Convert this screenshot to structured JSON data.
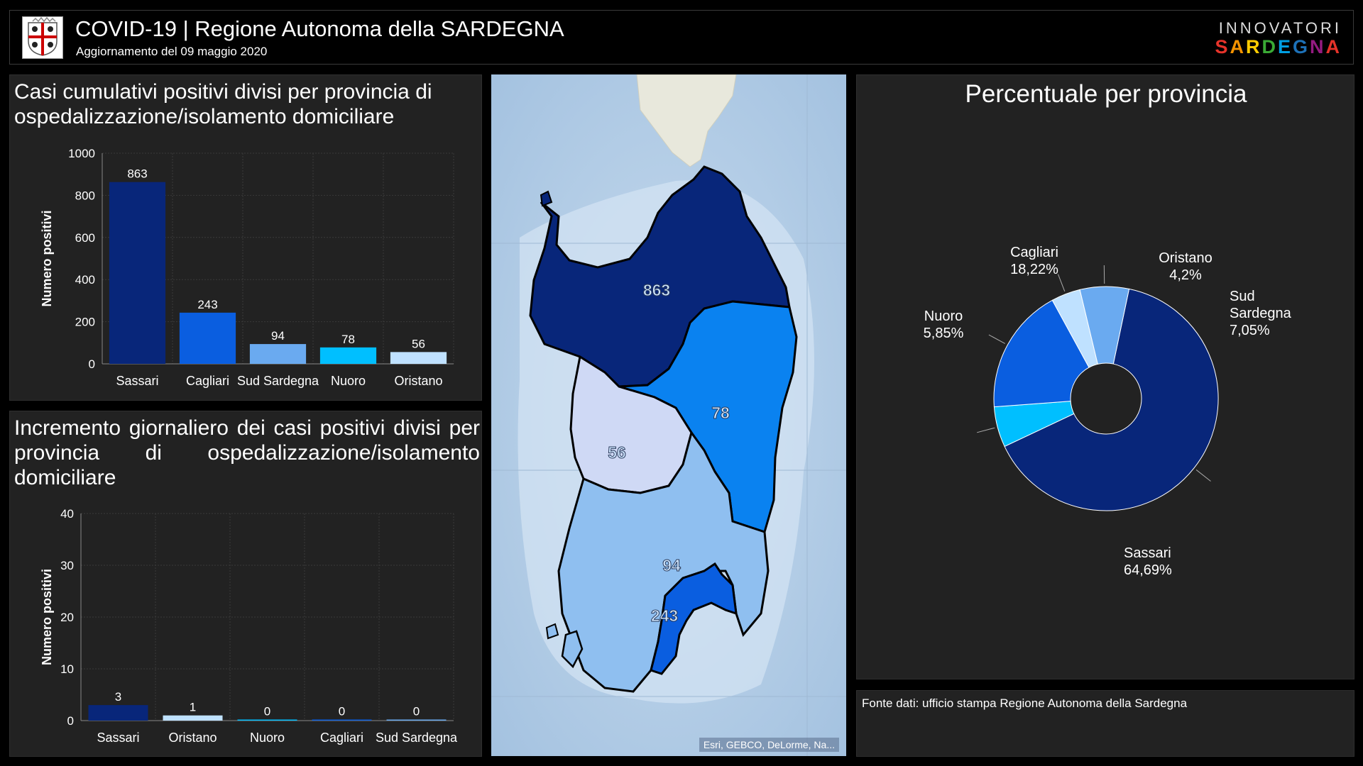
{
  "header": {
    "title": "COVID-19 | Regione Autonoma della SARDEGNA",
    "subtitle": "Aggiornamento del 09 maggio 2020",
    "brand_top": "INNOVATORI",
    "brand_bottom": "SARDEGNA",
    "brand_colors": [
      "#e6332a",
      "#f39200",
      "#ffcc00",
      "#3aaa35",
      "#009fe3",
      "#1d71b8",
      "#951b81",
      "#e6332a"
    ]
  },
  "chart1": {
    "title": "Casi cumulativi positivi divisi per provincia di ospedalizzazione/isolamento domiciliare",
    "chart_data": {
      "type": "bar",
      "categories": [
        "Sassari",
        "Cagliari",
        "Sud Sardegna",
        "Nuoro",
        "Oristano"
      ],
      "values": [
        863,
        243,
        94,
        78,
        56
      ],
      "colors": [
        "#08267a",
        "#0a5ee0",
        "#6aaaf0",
        "#00bfff",
        "#bfe1ff"
      ],
      "ylabel": "Numero positivi",
      "ylim": [
        0,
        1000
      ],
      "yticks": [
        0,
        200,
        400,
        600,
        800,
        1000
      ]
    }
  },
  "chart2": {
    "title": "Incremento giornaliero dei casi positivi divisi per provincia di ospedalizzazione/isolamento domiciliare",
    "chart_data": {
      "type": "bar",
      "categories": [
        "Sassari",
        "Oristano",
        "Nuoro",
        "Cagliari",
        "Sud Sardegna"
      ],
      "values": [
        3,
        1,
        0,
        0,
        0
      ],
      "colors": [
        "#08267a",
        "#bfe1ff",
        "#00bfff",
        "#0a5ee0",
        "#6aaaf0"
      ],
      "ylabel": "Numero positivi",
      "ylim": [
        0,
        40
      ],
      "yticks": [
        0,
        10,
        20,
        30,
        40
      ]
    }
  },
  "map": {
    "labels": [
      "863",
      "78",
      "56",
      "94",
      "243"
    ],
    "attribution": "Esri, GEBCO, DeLorme, Na..."
  },
  "pie": {
    "title": "Percentuale per provincia",
    "chart_data": {
      "type": "pie",
      "slices": [
        {
          "name": "Sassari",
          "label": "64,69%",
          "value": 64.69,
          "color": "#08267a"
        },
        {
          "name": "Nuoro",
          "label": "5,85%",
          "value": 5.85,
          "color": "#00bfff"
        },
        {
          "name": "Cagliari",
          "label": "18,22%",
          "value": 18.22,
          "color": "#0a5ee0"
        },
        {
          "name": "Oristano",
          "label": "4,2%",
          "value": 4.2,
          "color": "#bfe1ff"
        },
        {
          "name": "Sud Sardegna",
          "label": "7,05%",
          "value": 7.05,
          "color": "#6aaaf0"
        }
      ]
    }
  },
  "fonte": "Fonte dati: ufficio stampa Regione Autonoma della Sardegna"
}
